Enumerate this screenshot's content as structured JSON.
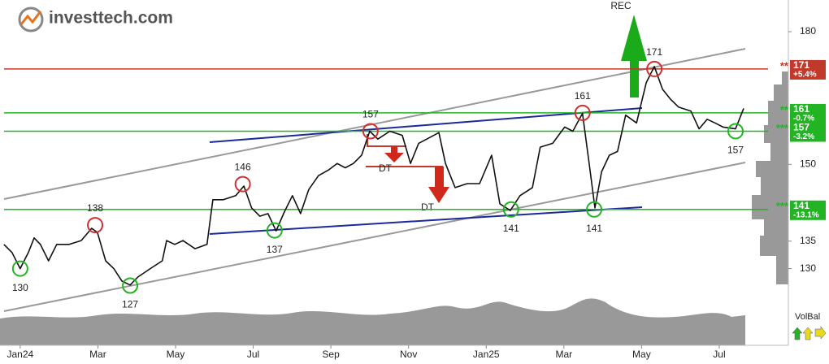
{
  "logo": "investtech.com",
  "chart_data": {
    "type": "line",
    "log_scale": true,
    "color": "#111111",
    "x": [
      -0.42,
      -0.21,
      0,
      0.21,
      0.36,
      0.52,
      0.73,
      0.94,
      1.26,
      1.57,
      1.84,
      1.99,
      2.2,
      2.41,
      2.62,
      2.83,
      3.03,
      3.35,
      3.66,
      3.77,
      3.98,
      4.19,
      4.5,
      4.81,
      4.96,
      5.23,
      5.55,
      5.76,
      5.96,
      6.17,
      6.38,
      6.59,
      6.8,
      7.01,
      7.22,
      7.43,
      7.68,
      7.95,
      8.16,
      8.37,
      8.58,
      8.79,
      9.0,
      9.21,
      9.52,
      9.84,
      10.05,
      10.26,
      10.47,
      10.78,
      10.95,
      11.2,
      11.51,
      11.83,
      12.14,
      12.35,
      12.62,
      12.87,
      13.19,
      13.39,
      13.71,
      14.02,
      14.23,
      14.48,
      14.65,
      14.8,
      14.97,
      15.17,
      15.38,
      15.59,
      15.87,
      16.12,
      16.33,
      16.54,
      16.74,
      16.95,
      17.27,
      17.48,
      17.69,
      17.89,
      18.1,
      18.42,
      18.63
    ],
    "values": [
      134.4,
      132.9,
      130.0,
      132.9,
      135.6,
      134.4,
      131.4,
      134.4,
      134.4,
      135.1,
      137.4,
      136.6,
      131.4,
      130.0,
      127.8,
      127.1,
      128.5,
      130.0,
      131.4,
      135.1,
      134.4,
      135.1,
      133.6,
      134.4,
      142.9,
      142.9,
      143.7,
      145.6,
      141.3,
      139.7,
      140.2,
      136.9,
      140.5,
      143.7,
      140.2,
      144.9,
      147.7,
      148.9,
      150.2,
      149.3,
      150.2,
      151.9,
      157.0,
      155.3,
      157.0,
      156.1,
      150.2,
      154.4,
      155.3,
      156.7,
      150.2,
      145.3,
      146.1,
      146.1,
      151.9,
      142.1,
      140.8,
      143.7,
      145.3,
      153.6,
      154.4,
      157.9,
      157.0,
      160.9,
      150.2,
      141.3,
      148.5,
      151.9,
      152.7,
      160.5,
      158.8,
      167.8,
      171.6,
      166.3,
      164.1,
      162.3,
      161.4,
      157.5,
      159.6,
      158.8,
      157.9,
      157.5,
      162.0
    ],
    "xlim": [
      -0.52,
      19.78
    ],
    "xticks": [
      {
        "value": 0,
        "label": "Jan24"
      },
      {
        "value": 2,
        "label": "Mar"
      },
      {
        "value": 4,
        "label": "May"
      },
      {
        "value": 6,
        "label": "Jul"
      },
      {
        "value": 8,
        "label": "Sep"
      },
      {
        "value": 10,
        "label": "Nov"
      },
      {
        "value": 12,
        "label": "Jan25"
      },
      {
        "value": 14,
        "label": "Mar"
      },
      {
        "value": 16,
        "label": "May"
      },
      {
        "value": 18,
        "label": "Jul"
      }
    ],
    "ylim": [
      117,
      188
    ],
    "yticks": [
      130,
      135,
      150,
      180
    ],
    "levels": [
      {
        "value": 171,
        "stars": "**",
        "change": "+5.4%",
        "color": "#c0392b"
      },
      {
        "value": 161,
        "stars": "**",
        "change": "-0.7%",
        "color": "#22b422"
      },
      {
        "value": 157,
        "stars": "***",
        "change": "-3.2%",
        "color": "#22b422"
      },
      {
        "value": 141,
        "stars": "***",
        "change": "-13.1%",
        "color": "#22b422"
      }
    ],
    "annotations": [
      {
        "x": 0,
        "value": 130,
        "color": "#22b422"
      },
      {
        "x": 1.93,
        "value": 138,
        "color": "#d03030"
      },
      {
        "x": 2.83,
        "value": 127,
        "color": "#22b422"
      },
      {
        "x": 5.73,
        "value": 146,
        "color": "#d03030"
      },
      {
        "x": 6.55,
        "value": 137,
        "color": "#22b422"
      },
      {
        "x": 9.02,
        "value": 157,
        "color": "#d03030"
      },
      {
        "x": 12.64,
        "value": 141,
        "color": "#22b422"
      },
      {
        "x": 14.48,
        "value": 161,
        "color": "#d03030"
      },
      {
        "x": 14.78,
        "value": 141,
        "color": "#22b422"
      },
      {
        "x": 16.33,
        "value": 171,
        "color": "#d03030"
      },
      {
        "x": 18.42,
        "value": 157,
        "color": "#22b422"
      }
    ],
    "signals": [
      "DT",
      "DT",
      "REC"
    ],
    "indicator": "VolBal"
  }
}
